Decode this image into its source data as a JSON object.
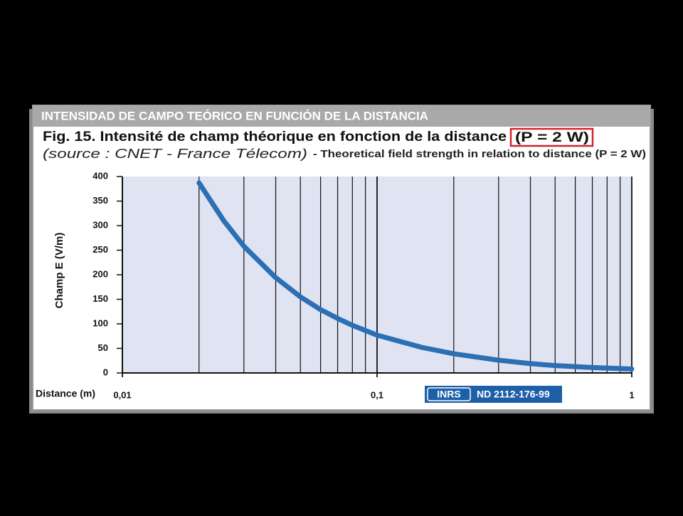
{
  "chart_data": {
    "type": "line",
    "title": "INTENSIDAD DE CAMPO TEÓRICO EN FUNCIÓN DE LA DISTANCIA",
    "subtitle": "Fig. 15. Intensité de champ théorique en fonction de la distance",
    "subtitle_highlight": "(P = 2 W)",
    "source": "(source : CNET - France Télecom)",
    "caption": "- Theoretical field strength in relation to distance (P = 2 W)",
    "x_label": "Distance (m)",
    "y_label": "Champ E (V/m)",
    "logo": "INRS",
    "reference": "ND 2112-176-99",
    "x": [
      0.02,
      0.025,
      0.03,
      0.04,
      0.05,
      0.06,
      0.07,
      0.08,
      0.1,
      0.15,
      0.2,
      0.3,
      0.4,
      0.5,
      0.7,
      1
    ],
    "series": [
      {
        "color": "#2b6fb4",
        "values": [
          387,
          310,
          258,
          194,
          155,
          129,
          111,
          97,
          77,
          52,
          39,
          26,
          19,
          15,
          11,
          8
        ]
      }
    ],
    "xlim": [
      0.01,
      1
    ],
    "ylim": [
      0,
      400
    ],
    "x_log": true,
    "xticks": [
      {
        "value": 0.01,
        "label": "0,01"
      },
      {
        "value": 0.1,
        "label": "0,1"
      },
      1
    ],
    "xgrid": [
      0.02,
      0.03,
      0.04,
      0.05,
      0.06,
      0.07,
      0.08,
      0.09,
      0.2,
      0.3,
      0.4,
      0.5,
      0.6,
      0.7,
      0.8,
      0.9
    ],
    "yticks": [
      0,
      50,
      100,
      150,
      200,
      250,
      300,
      350,
      400
    ]
  }
}
